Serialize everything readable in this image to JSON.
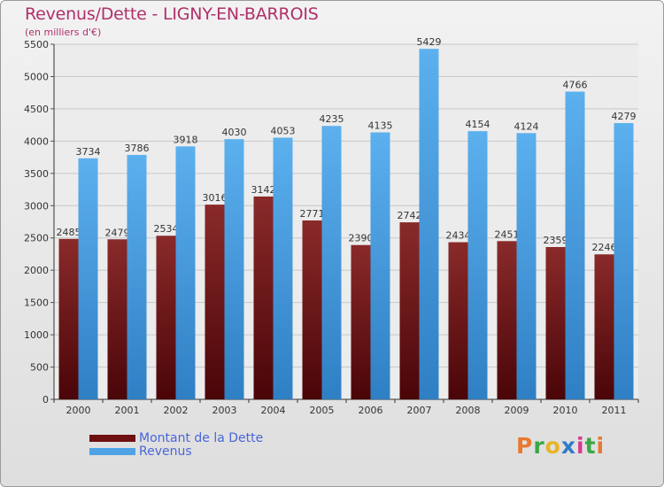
{
  "title": "Revenus/Dette - LIGNY-EN-BARROIS",
  "subtitle": "(en milliers d'€)",
  "logo": {
    "text": "Proxiti",
    "colors": [
      "#e8792f",
      "#39a845",
      "#e8b423",
      "#2f7cc8",
      "#d63b8f",
      "#39a845",
      "#e8792f"
    ]
  },
  "colors": {
    "debt": "#6e0f12",
    "revenue": "#4ea3e6",
    "title": "#b0306a",
    "legend_text": "#4a66d8"
  },
  "chart_data": {
    "type": "bar",
    "categories": [
      "2000",
      "2001",
      "2002",
      "2003",
      "2004",
      "2005",
      "2006",
      "2007",
      "2008",
      "2009",
      "2010",
      "2011"
    ],
    "series": [
      {
        "name": "Montant de la Dette",
        "values": [
          2485,
          2479,
          2534,
          3016,
          3142,
          2771,
          2390,
          2742,
          2434,
          2451,
          2359,
          2246
        ],
        "labels": [
          "2485",
          "2479",
          "2534",
          "3016",
          "3142",
          "2771",
          "2390",
          "2742",
          "2434",
          "2451",
          "2359",
          "2246"
        ]
      },
      {
        "name": "Revenus",
        "values": [
          3734,
          3786,
          3918,
          4030,
          4053,
          4235,
          4135,
          5429,
          4154,
          4124,
          4766,
          4279
        ],
        "labels": [
          "3734",
          "3786",
          "3918",
          "4030",
          "4053",
          "4235",
          "4135",
          "5429",
          "4154",
          "4124",
          "4766",
          "4279"
        ]
      }
    ],
    "ylim": [
      0,
      5500
    ],
    "yticks": [
      "0",
      "500",
      "1000",
      "1500",
      "2000",
      "2500",
      "3000",
      "3500",
      "4000",
      "4500",
      "5000",
      "5500"
    ],
    "grid": true,
    "legend_position": "bottom-left"
  }
}
